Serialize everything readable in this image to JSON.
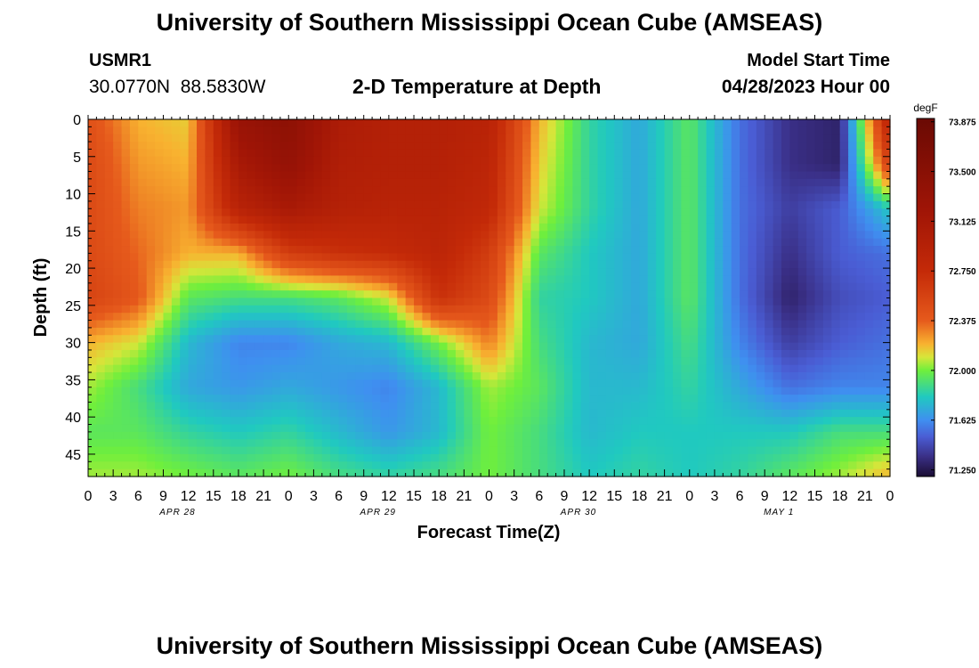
{
  "page": {
    "title": "University of Southern Mississippi Ocean Cube (AMSEAS)",
    "station_id": "USMR1",
    "station_coords": "30.0770N  88.5830W",
    "plot_title": "2-D Temperature at Depth",
    "model_start_label": "Model Start Time",
    "model_start_value": "04/28/2023 Hour 00",
    "footer_title": "University of Southern Mississippi Ocean Cube (AMSEAS)"
  },
  "chart_data": {
    "type": "heatmap",
    "title": "2-D Temperature at Depth",
    "xlabel": "Forecast Time(Z)",
    "ylabel": "Depth (ft)",
    "x_tick_labels": [
      "0",
      "3",
      "6",
      "9",
      "12",
      "15",
      "18",
      "21",
      "0",
      "3",
      "6",
      "9",
      "12",
      "15",
      "18",
      "21",
      "0",
      "3",
      "6",
      "9",
      "12",
      "15",
      "18",
      "21",
      "0",
      "3",
      "6",
      "9",
      "12",
      "15",
      "18",
      "21",
      "0"
    ],
    "date_labels": [
      {
        "label": "APR 28",
        "hour": 9
      },
      {
        "label": "APR 29",
        "hour": 33
      },
      {
        "label": "APR 30",
        "hour": 57
      },
      {
        "label": "MAY 1",
        "hour": 81
      }
    ],
    "xlim_hours": [
      0,
      96
    ],
    "y_ticks": [
      0,
      5,
      10,
      15,
      20,
      25,
      30,
      35,
      40,
      45
    ],
    "ylim": [
      0,
      48
    ],
    "colorbar": {
      "unit": "degF",
      "tick_values": [
        71.25,
        71.625,
        72.0,
        72.375,
        72.75,
        73.125,
        73.5,
        73.875
      ],
      "tick_labels": [
        "71.250",
        "71.625",
        "72.000",
        "72.375",
        "72.750",
        "73.125",
        "73.500",
        "73.875"
      ],
      "min": 71.2,
      "max": 73.9,
      "color_stops": [
        {
          "value": 71.2,
          "color": "#1a0d33"
        },
        {
          "value": 71.35,
          "color": "#3a2f86"
        },
        {
          "value": 71.5,
          "color": "#4a5dd4"
        },
        {
          "value": 71.625,
          "color": "#3f8ff0"
        },
        {
          "value": 71.8,
          "color": "#20c9c0"
        },
        {
          "value": 72.0,
          "color": "#6fef3c"
        },
        {
          "value": 72.1,
          "color": "#d6e63a"
        },
        {
          "value": 72.2,
          "color": "#f8b230"
        },
        {
          "value": 72.375,
          "color": "#e65a1c"
        },
        {
          "value": 72.75,
          "color": "#c42a08"
        },
        {
          "value": 73.2,
          "color": "#a01506"
        },
        {
          "value": 73.9,
          "color": "#6a0a04"
        }
      ]
    },
    "depths_ft": [
      0,
      6,
      12,
      18,
      24,
      30,
      36,
      42,
      48
    ],
    "hours": [
      0,
      6,
      12,
      18,
      24,
      30,
      36,
      42,
      48,
      54,
      60,
      66,
      72,
      78,
      84,
      90,
      96
    ],
    "temperature_degF": [
      [
        72.45,
        72.2,
        72.15,
        73.3,
        73.45,
        73.05,
        72.95,
        72.95,
        72.9,
        72.2,
        71.85,
        71.7,
        71.95,
        71.55,
        71.35,
        71.3,
        72.9
      ],
      [
        72.5,
        72.25,
        72.2,
        73.1,
        73.35,
        73.0,
        72.95,
        72.95,
        72.85,
        72.15,
        71.85,
        71.7,
        71.95,
        71.55,
        71.35,
        71.3,
        72.6
      ],
      [
        72.5,
        72.3,
        72.25,
        72.9,
        73.1,
        72.95,
        72.9,
        72.9,
        72.8,
        72.1,
        71.85,
        71.7,
        71.95,
        71.55,
        71.4,
        71.5,
        71.8
      ],
      [
        72.5,
        72.35,
        72.2,
        72.2,
        72.6,
        72.7,
        72.75,
        72.85,
        72.6,
        71.95,
        71.8,
        71.7,
        71.95,
        71.55,
        71.35,
        71.5,
        71.55
      ],
      [
        72.55,
        72.4,
        71.95,
        71.9,
        71.9,
        71.95,
        72.1,
        72.7,
        72.5,
        71.85,
        71.8,
        71.7,
        71.95,
        71.55,
        71.3,
        71.45,
        71.5
      ],
      [
        72.2,
        72.1,
        71.75,
        71.6,
        71.6,
        71.7,
        71.75,
        72.0,
        72.3,
        71.9,
        71.75,
        71.7,
        71.9,
        71.6,
        71.4,
        71.5,
        71.55
      ],
      [
        72.05,
        71.9,
        71.7,
        71.65,
        71.7,
        71.65,
        71.6,
        71.75,
        72.05,
        71.95,
        71.75,
        71.75,
        71.85,
        71.7,
        71.55,
        71.6,
        71.6
      ],
      [
        71.95,
        71.95,
        71.85,
        71.8,
        71.85,
        71.75,
        71.65,
        71.75,
        72.0,
        71.9,
        71.75,
        71.8,
        71.8,
        71.8,
        71.8,
        71.9,
        71.9
      ],
      [
        72.05,
        72.05,
        72.0,
        71.95,
        72.0,
        71.9,
        71.85,
        71.9,
        72.0,
        71.9,
        71.8,
        71.85,
        71.8,
        71.85,
        71.95,
        72.05,
        72.2
      ]
    ]
  }
}
